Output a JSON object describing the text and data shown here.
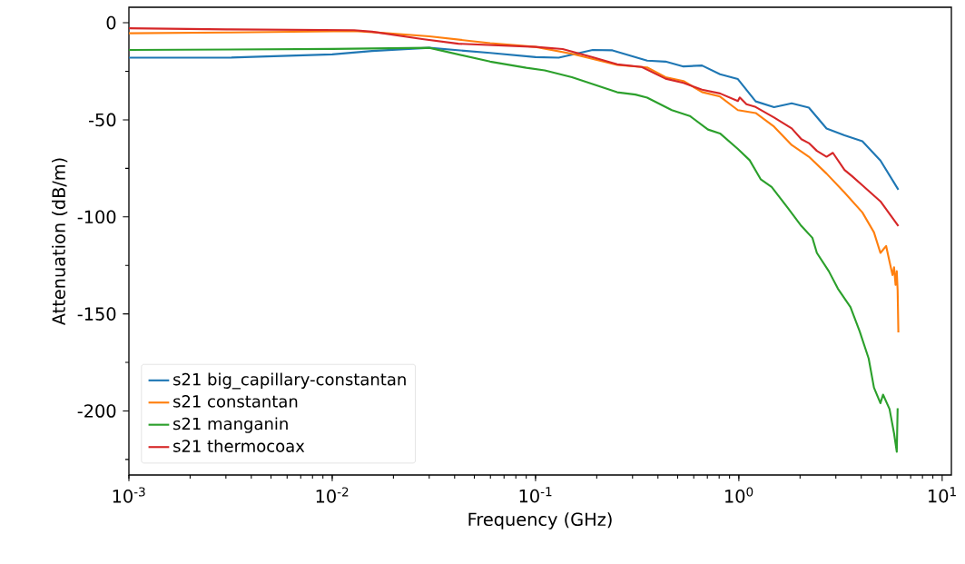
{
  "chart_data": {
    "type": "line",
    "xlabel": "Frequency (GHz)",
    "ylabel": "Attenuation (dB/m)",
    "log": "x",
    "legend": "bottom left",
    "xlim": [
      0.001,
      11.1
    ],
    "ylim": [
      -233,
      8
    ],
    "xticks": [
      {
        "value": 0.001,
        "label": "10$^{-3}$"
      },
      {
        "value": 0.01,
        "label": "10$^{-2}$"
      },
      {
        "value": 0.1,
        "label": "10$^{-1}$"
      },
      {
        "value": 1,
        "label": "10$^{0}$"
      },
      {
        "value": 10,
        "label": "10$^{1}$"
      }
    ],
    "yticks": [
      0,
      {
        "value": -25,
        "label": null
      },
      -50,
      {
        "value": -75,
        "label": null
      },
      -100,
      {
        "value": -125,
        "label": null
      },
      -150,
      {
        "value": -175,
        "label": null
      },
      -200,
      {
        "value": -225,
        "label": null
      }
    ],
    "series": [
      {
        "name": "s21 big_capillary-constantan",
        "color": "#1f77b4",
        "x": [
          0.001,
          0.00304,
          0.01,
          0.0157,
          0.03,
          0.0598,
          0.1,
          0.13,
          0.191,
          0.239,
          0.354,
          0.436,
          0.534,
          0.659,
          0.808,
          0.989,
          1.21,
          1.49,
          1.82,
          2.21,
          2.7,
          3.31,
          4.05,
          4.97,
          6.09
        ],
        "values": [
          -18,
          -18,
          -16.3,
          -14.5,
          -12.9,
          -15.5,
          -17.7,
          -18,
          -14,
          -14.2,
          -19.5,
          -20,
          -22.5,
          -22,
          -26.5,
          -29,
          -40.5,
          -43.5,
          -41.5,
          -43.7,
          -54.5,
          -58,
          -61,
          -71,
          -86
        ]
      },
      {
        "name": "s21 constantan",
        "color": "#ff7f0e",
        "x": [
          0.001,
          0.00304,
          0.0128,
          0.0157,
          0.03,
          0.0598,
          0.1,
          0.151,
          0.252,
          0.354,
          0.436,
          0.534,
          0.659,
          0.808,
          0.989,
          1.21,
          1.49,
          1.82,
          2.21,
          2.7,
          3.31,
          4.05,
          4.62,
          4.97,
          5.3,
          5.51,
          5.7,
          5.8,
          5.9,
          5.98,
          6.04,
          6.09
        ],
        "values": [
          -5.4,
          -5,
          -4.3,
          -4.8,
          -7,
          -10.5,
          -12.4,
          -16,
          -21.7,
          -23,
          -28,
          -30,
          -35.7,
          -38,
          -45,
          -46.5,
          -53.5,
          -63,
          -69,
          -77.7,
          -87.5,
          -97.7,
          -108,
          -118.6,
          -115,
          -123,
          -130,
          -126,
          -135,
          -128,
          -138,
          -159.5
        ]
      },
      {
        "name": "s21 manganin",
        "color": "#2ca02c",
        "x": [
          0.001,
          0.01,
          0.03,
          0.0598,
          0.0901,
          0.111,
          0.151,
          0.252,
          0.31,
          0.354,
          0.468,
          0.574,
          0.705,
          0.808,
          0.989,
          1.13,
          1.28,
          1.45,
          1.73,
          2.03,
          2.3,
          2.42,
          2.77,
          3.07,
          3.54,
          3.93,
          4.35,
          4.62,
          4.97,
          5.12,
          5.51,
          5.8,
          5.98,
          6.04
        ],
        "values": [
          -14,
          -13.5,
          -12.9,
          -20,
          -23.2,
          -24.5,
          -28,
          -35.8,
          -37,
          -38.6,
          -45,
          -48,
          -55,
          -57,
          -65,
          -70.8,
          -80.6,
          -84.6,
          -95,
          -104.7,
          -110.8,
          -118.6,
          -128,
          -137,
          -146.5,
          -159,
          -173,
          -188,
          -196,
          -191.6,
          -199,
          -211.6,
          -221,
          -198.6
        ]
      },
      {
        "name": "s21 thermocoax",
        "color": "#d62728",
        "x": [
          0.001,
          0.00304,
          0.0128,
          0.0157,
          0.0277,
          0.0417,
          0.1,
          0.136,
          0.191,
          0.252,
          0.333,
          0.436,
          0.534,
          0.659,
          0.808,
          0.989,
          1.01,
          1.09,
          1.21,
          1.49,
          1.82,
          2.03,
          2.21,
          2.42,
          2.7,
          2.9,
          3.31,
          3.6,
          4.05,
          4.97,
          6.09
        ],
        "values": [
          -2.8,
          -3.4,
          -3.8,
          -4.6,
          -8.4,
          -10.8,
          -12.4,
          -13.5,
          -17.7,
          -21.4,
          -22.8,
          -28.8,
          -31,
          -34.5,
          -36.4,
          -40.3,
          -38.5,
          -42,
          -43.4,
          -48.8,
          -54.4,
          -60,
          -62,
          -66,
          -69,
          -67,
          -75.8,
          -79,
          -83.7,
          -92,
          -104.7
        ]
      }
    ]
  }
}
